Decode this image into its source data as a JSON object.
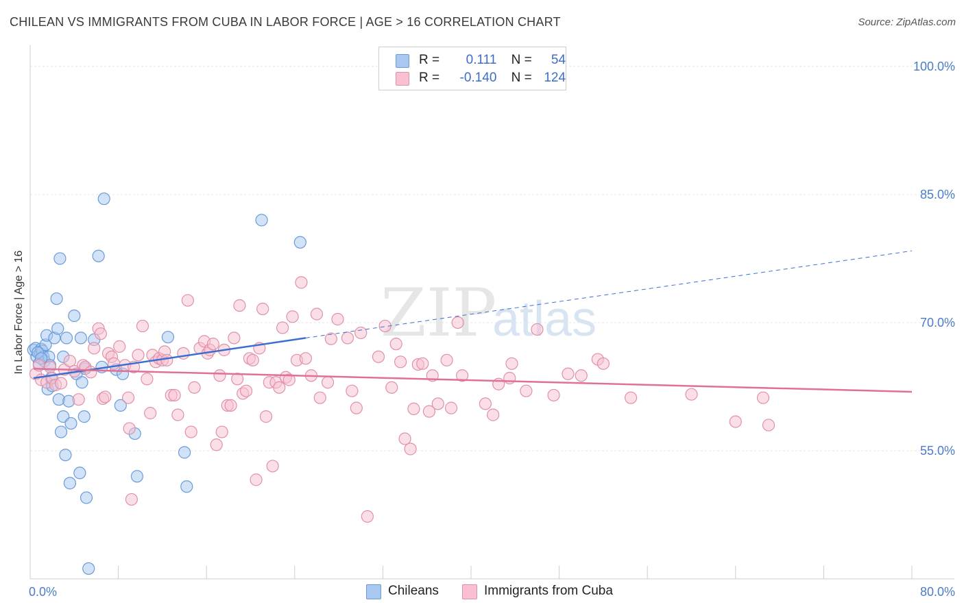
{
  "title": "CHILEAN VS IMMIGRANTS FROM CUBA IN LABOR FORCE | AGE > 16 CORRELATION CHART",
  "source": "Source: ZipAtlas.com",
  "watermark": {
    "zip": "ZIP",
    "atlas": "atlas"
  },
  "legend": {
    "rows": [
      {
        "r_label": "R =",
        "r_value": "0.111",
        "n_label": "N =",
        "n_value": "54",
        "color": "#a8c8f0",
        "border": "#6a9ad8"
      },
      {
        "r_label": "R =",
        "r_value": "-0.140",
        "n_label": "N =",
        "n_value": "124",
        "color": "#f8c0d0",
        "border": "#e090a8"
      }
    ]
  },
  "bottom_legend": [
    {
      "label": "Chileans",
      "color": "#a8c8f0",
      "border": "#6a9ad8"
    },
    {
      "label": "Immigrants from Cuba",
      "color": "#f8c0d0",
      "border": "#e090a8"
    }
  ],
  "chart_data": {
    "type": "scatter",
    "ylabel": "In Labor Force | Age > 16",
    "xlim": [
      0,
      80
    ],
    "ylim": [
      40,
      102
    ],
    "x_ticks": [
      {
        "value": 0,
        "label": "0.0%"
      },
      {
        "value": 80,
        "label": "80.0%"
      }
    ],
    "y_ticks": [
      {
        "value": 55,
        "label": "55.0%"
      },
      {
        "value": 70,
        "label": "70.0%"
      },
      {
        "value": 85,
        "label": "85.0%"
      },
      {
        "value": 100,
        "label": "100.0%"
      }
    ],
    "grid": true,
    "series": [
      {
        "name": "Chileans",
        "color": "#a8c8f0",
        "stroke": "#6a9ad8",
        "trend_color": "#3a6fd0",
        "trend": {
          "x0": 0.3,
          "y0": 63.5,
          "x1": 25,
          "y1": 68.2,
          "dash_to_x": 80,
          "dash_to_y": 78.4
        },
        "points": [
          [
            0.3,
            66.8
          ],
          [
            0.5,
            67.0
          ],
          [
            0.6,
            66.0
          ],
          [
            0.8,
            65.2
          ],
          [
            0.9,
            66.4
          ],
          [
            1.0,
            66.9
          ],
          [
            1.1,
            66.7
          ],
          [
            1.2,
            66.0
          ],
          [
            1.3,
            65.5
          ],
          [
            1.4,
            67.4
          ],
          [
            1.5,
            68.5
          ],
          [
            1.6,
            62.2
          ],
          [
            1.7,
            66.0
          ],
          [
            1.8,
            65.0
          ],
          [
            1.9,
            63.5
          ],
          [
            2.0,
            62.6
          ],
          [
            2.2,
            68.2
          ],
          [
            2.4,
            72.8
          ],
          [
            2.5,
            69.3
          ],
          [
            2.6,
            61.0
          ],
          [
            2.7,
            77.5
          ],
          [
            2.8,
            57.2
          ],
          [
            3.0,
            66.0
          ],
          [
            3.0,
            59.0
          ],
          [
            3.2,
            54.5
          ],
          [
            3.3,
            68.2
          ],
          [
            3.5,
            60.8
          ],
          [
            3.6,
            51.2
          ],
          [
            3.7,
            58.2
          ],
          [
            4.0,
            70.8
          ],
          [
            4.2,
            64.0
          ],
          [
            4.5,
            52.4
          ],
          [
            4.6,
            68.2
          ],
          [
            4.7,
            63.0
          ],
          [
            4.9,
            59.0
          ],
          [
            5.0,
            64.6
          ],
          [
            5.1,
            49.5
          ],
          [
            5.3,
            41.2
          ],
          [
            5.8,
            68.0
          ],
          [
            6.2,
            77.8
          ],
          [
            6.5,
            64.8
          ],
          [
            6.7,
            84.5
          ],
          [
            7.8,
            64.5
          ],
          [
            8.2,
            60.3
          ],
          [
            8.4,
            64.0
          ],
          [
            9.5,
            57.0
          ],
          [
            9.7,
            52.0
          ],
          [
            12.5,
            68.3
          ],
          [
            14.0,
            54.8
          ],
          [
            14.2,
            50.8
          ],
          [
            21.0,
            82.0
          ],
          [
            24.5,
            79.4
          ],
          [
            0.7,
            66.5
          ],
          [
            1.0,
            65.8
          ]
        ]
      },
      {
        "name": "Immigrants from Cuba",
        "color": "#f8c0d0",
        "stroke": "#e090a8",
        "trend_color": "#e07098",
        "trend": {
          "x0": 0.3,
          "y0": 64.6,
          "x1": 80,
          "y1": 61.9
        },
        "points": [
          [
            0.5,
            64.0
          ],
          [
            0.8,
            65.0
          ],
          [
            1.0,
            63.3
          ],
          [
            1.5,
            63.0
          ],
          [
            1.8,
            64.8
          ],
          [
            2.0,
            63.5
          ],
          [
            2.3,
            62.7
          ],
          [
            2.8,
            62.9
          ],
          [
            3.1,
            64.5
          ],
          [
            3.6,
            65.5
          ],
          [
            4.0,
            64.3
          ],
          [
            4.4,
            61.0
          ],
          [
            4.8,
            65.0
          ],
          [
            5.0,
            64.8
          ],
          [
            5.5,
            64.2
          ],
          [
            5.8,
            67.0
          ],
          [
            6.2,
            69.3
          ],
          [
            6.4,
            68.7
          ],
          [
            6.6,
            61.1
          ],
          [
            6.8,
            61.3
          ],
          [
            7.1,
            66.4
          ],
          [
            7.4,
            66.0
          ],
          [
            7.6,
            65.2
          ],
          [
            8.1,
            67.2
          ],
          [
            8.6,
            65.0
          ],
          [
            8.9,
            61.2
          ],
          [
            9.0,
            57.6
          ],
          [
            9.2,
            49.3
          ],
          [
            9.4,
            64.8
          ],
          [
            9.8,
            66.2
          ],
          [
            10.2,
            69.6
          ],
          [
            10.6,
            63.4
          ],
          [
            10.9,
            59.4
          ],
          [
            11.1,
            66.2
          ],
          [
            11.4,
            65.4
          ],
          [
            11.7,
            65.8
          ],
          [
            12.0,
            65.6
          ],
          [
            12.2,
            66.6
          ],
          [
            12.4,
            65.6
          ],
          [
            12.8,
            61.5
          ],
          [
            13.1,
            61.5
          ],
          [
            13.4,
            59.2
          ],
          [
            13.9,
            66.4
          ],
          [
            14.3,
            72.6
          ],
          [
            14.6,
            57.2
          ],
          [
            14.9,
            62.4
          ],
          [
            15.4,
            67.0
          ],
          [
            15.8,
            67.8
          ],
          [
            16.1,
            66.4
          ],
          [
            16.3,
            66.8
          ],
          [
            16.6,
            67.5
          ],
          [
            16.9,
            55.7
          ],
          [
            17.2,
            63.8
          ],
          [
            17.4,
            57.2
          ],
          [
            17.6,
            66.8
          ],
          [
            17.9,
            60.3
          ],
          [
            18.2,
            60.3
          ],
          [
            18.5,
            68.2
          ],
          [
            18.8,
            63.4
          ],
          [
            19.0,
            72.0
          ],
          [
            19.3,
            61.7
          ],
          [
            19.6,
            62.0
          ],
          [
            19.9,
            65.8
          ],
          [
            20.2,
            65.6
          ],
          [
            20.5,
            51.6
          ],
          [
            20.8,
            67.0
          ],
          [
            21.1,
            71.6
          ],
          [
            21.4,
            59.0
          ],
          [
            21.7,
            63.0
          ],
          [
            22.0,
            53.2
          ],
          [
            22.3,
            63.0
          ],
          [
            22.6,
            62.4
          ],
          [
            22.9,
            69.4
          ],
          [
            23.2,
            63.6
          ],
          [
            23.5,
            63.3
          ],
          [
            23.8,
            70.7
          ],
          [
            24.2,
            65.6
          ],
          [
            24.6,
            74.7
          ],
          [
            25.0,
            65.8
          ],
          [
            25.5,
            63.8
          ],
          [
            26.0,
            71.0
          ],
          [
            26.3,
            61.2
          ],
          [
            27.0,
            63.0
          ],
          [
            27.3,
            68.1
          ],
          [
            27.9,
            70.4
          ],
          [
            28.8,
            68.2
          ],
          [
            29.2,
            62.0
          ],
          [
            29.6,
            60.0
          ],
          [
            30.0,
            68.8
          ],
          [
            30.6,
            47.3
          ],
          [
            31.6,
            66.0
          ],
          [
            32.2,
            69.6
          ],
          [
            32.8,
            62.4
          ],
          [
            33.2,
            67.5
          ],
          [
            33.6,
            65.4
          ],
          [
            34.0,
            56.4
          ],
          [
            34.5,
            55.2
          ],
          [
            34.8,
            59.9
          ],
          [
            35.2,
            65.1
          ],
          [
            35.6,
            65.2
          ],
          [
            36.2,
            59.6
          ],
          [
            36.5,
            63.8
          ],
          [
            37.0,
            60.5
          ],
          [
            37.8,
            65.6
          ],
          [
            38.2,
            60.0
          ],
          [
            38.8,
            70.0
          ],
          [
            39.2,
            63.8
          ],
          [
            41.3,
            60.5
          ],
          [
            42.0,
            59.2
          ],
          [
            42.5,
            62.8
          ],
          [
            43.5,
            63.5
          ],
          [
            43.7,
            65.2
          ],
          [
            45.0,
            62.0
          ],
          [
            46.0,
            69.2
          ],
          [
            47.5,
            61.5
          ],
          [
            48.8,
            64.0
          ],
          [
            50.0,
            63.8
          ],
          [
            51.5,
            65.7
          ],
          [
            52.0,
            65.2
          ],
          [
            54.5,
            61.2
          ],
          [
            60.0,
            61.6
          ],
          [
            64.0,
            58.4
          ],
          [
            66.5,
            61.2
          ],
          [
            67.0,
            58.0
          ]
        ]
      }
    ]
  }
}
